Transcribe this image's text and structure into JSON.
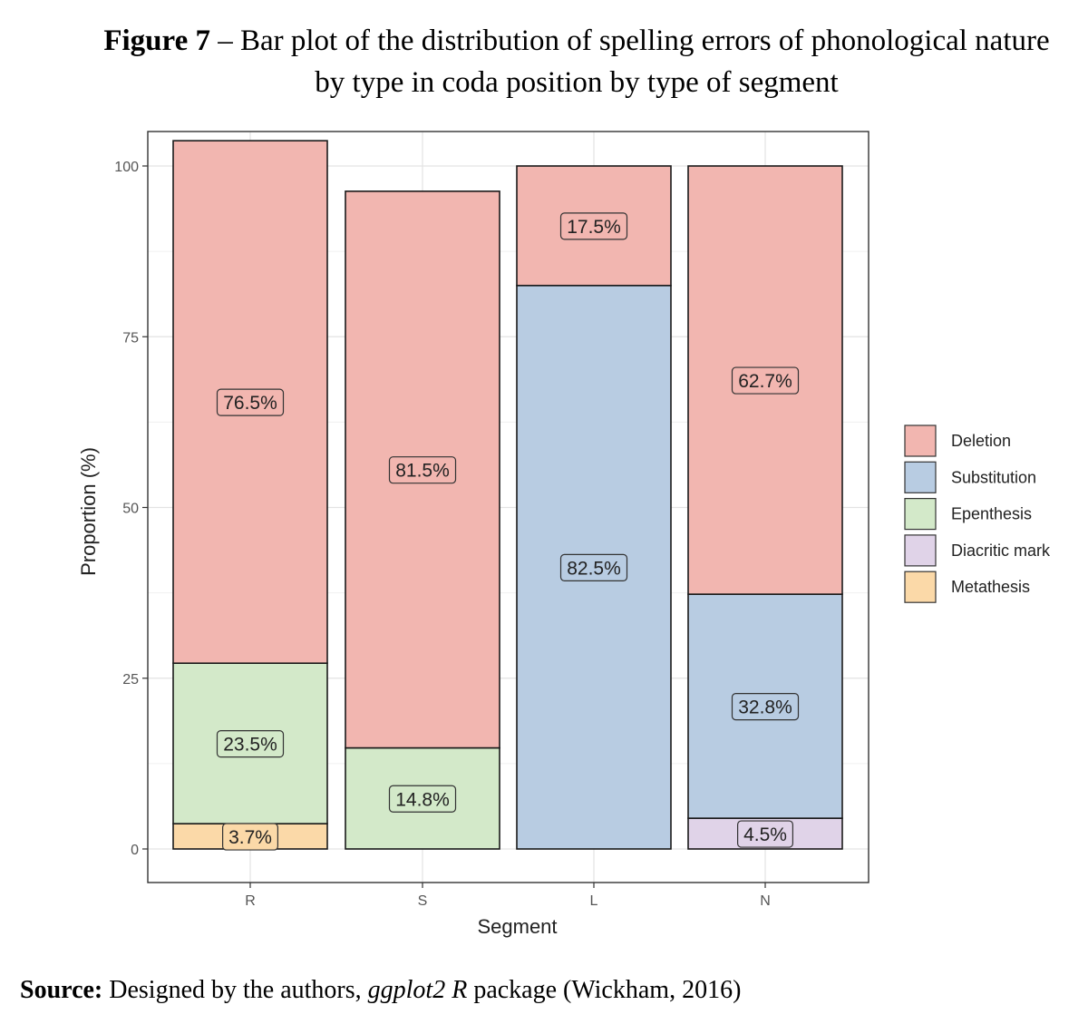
{
  "caption": {
    "label": "Figure 7",
    "text": " – Bar plot of the distribution of spelling errors of phonological nature by type in coda position by type of segment"
  },
  "source": {
    "label": "Source:",
    "text_before": " Designed by the authors, ",
    "italic": "ggplot2 R",
    "text_after": " package (Wickham, 2016)"
  },
  "chart_data": {
    "type": "bar",
    "stacked": true,
    "xlabel": "Segment",
    "ylabel": "Proportion (%)",
    "ylim": [
      0,
      100
    ],
    "yticks": [
      0,
      25,
      50,
      75,
      100
    ],
    "grid": true,
    "legend_position": "right",
    "categories": [
      "R",
      "S",
      "L",
      "N"
    ],
    "series": [
      {
        "name": "Deletion",
        "color": "#f2b6b0",
        "values": [
          76.5,
          81.5,
          17.5,
          62.7
        ],
        "labels": [
          "76.5%",
          "81.5%",
          "17.5%",
          "62.7%"
        ]
      },
      {
        "name": "Substitution",
        "color": "#b8cce2",
        "values": [
          0,
          0,
          82.5,
          32.8
        ],
        "labels": [
          "",
          "",
          "82.5%",
          "32.8%"
        ]
      },
      {
        "name": "Epenthesis",
        "color": "#d3e9c9",
        "values": [
          23.5,
          14.8,
          0,
          0
        ],
        "labels": [
          "23.5%",
          "14.8%",
          "",
          ""
        ]
      },
      {
        "name": "Diacritic mark",
        "color": "#e0d3e8",
        "values": [
          0,
          0,
          0,
          4.5
        ],
        "labels": [
          "",
          "",
          "",
          "4.5%"
        ]
      },
      {
        "name": "Metathesis",
        "color": "#fbd9a8",
        "values": [
          3.7,
          0,
          0,
          0
        ],
        "labels": [
          "3.7%",
          "",
          "",
          ""
        ]
      }
    ]
  }
}
